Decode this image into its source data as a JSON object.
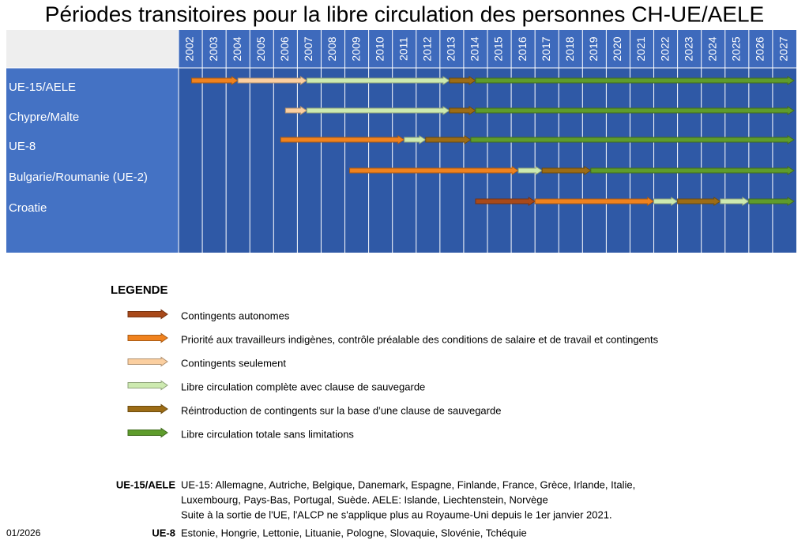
{
  "chart_data": {
    "type": "gantt",
    "title": "Périodes transitoires pour la libre circulation des personnes CH-UE/AELE",
    "xlim": [
      2002,
      2028
    ],
    "xticks": [
      2002,
      2003,
      2004,
      2005,
      2006,
      2007,
      2008,
      2009,
      2010,
      2011,
      2012,
      2013,
      2014,
      2015,
      2016,
      2017,
      2018,
      2019,
      2020,
      2021,
      2022,
      2023,
      2024,
      2025,
      2026,
      2027
    ],
    "legend_title": "LEGENDE",
    "legend": [
      {
        "name": "Contingents autonomes",
        "color": "#a8491a"
      },
      {
        "name": "Priorité aux travailleurs indigènes, contrôle préalable des conditions de salaire et de travail et contingents",
        "color": "#f0821e"
      },
      {
        "name": "Contingents seulement",
        "color": "#fbcfa0"
      },
      {
        "name": "Libre circulation complète avec clause de sauvegarde",
        "color": "#cdeab0"
      },
      {
        "name": "Réintroduction de contingents sur la base d’une clause de sauvegarde",
        "color": "#9c6c16"
      },
      {
        "name": "Libre circulation totale sans limitations",
        "color": "#5e9c2c"
      }
    ],
    "rows": [
      {
        "name": "UE-15/AELE",
        "segments": [
          {
            "kind": 1,
            "start": 2002.55,
            "end": 2004.5
          },
          {
            "kind": 2,
            "start": 2004.5,
            "end": 2007.4
          },
          {
            "kind": 3,
            "start": 2007.4,
            "end": 2013.4
          },
          {
            "kind": 4,
            "start": 2013.4,
            "end": 2014.5
          },
          {
            "kind": 5,
            "start": 2014.5,
            "end": 2027.9
          }
        ]
      },
      {
        "name": "Chypre/Malte",
        "segments": [
          {
            "kind": 2,
            "start": 2006.5,
            "end": 2007.4
          },
          {
            "kind": 3,
            "start": 2007.4,
            "end": 2013.4
          },
          {
            "kind": 4,
            "start": 2013.4,
            "end": 2014.5
          },
          {
            "kind": 5,
            "start": 2014.5,
            "end": 2027.9
          }
        ]
      },
      {
        "name": "UE-8",
        "segments": [
          {
            "kind": 1,
            "start": 2006.3,
            "end": 2011.5
          },
          {
            "kind": 3,
            "start": 2011.5,
            "end": 2012.4
          },
          {
            "kind": 4,
            "start": 2012.4,
            "end": 2014.3
          },
          {
            "kind": 5,
            "start": 2014.3,
            "end": 2027.9
          }
        ]
      },
      {
        "name": "Bulgarie/Roumanie (UE-2)",
        "segments": [
          {
            "kind": 1,
            "start": 2009.2,
            "end": 2016.3
          },
          {
            "kind": 3,
            "start": 2016.3,
            "end": 2017.3
          },
          {
            "kind": 4,
            "start": 2017.3,
            "end": 2019.35
          },
          {
            "kind": 5,
            "start": 2019.35,
            "end": 2027.9
          }
        ]
      },
      {
        "name": "Croatie",
        "segments": [
          {
            "kind": 0,
            "start": 2014.5,
            "end": 2017.0
          },
          {
            "kind": 1,
            "start": 2017.0,
            "end": 2022.0
          },
          {
            "kind": 3,
            "start": 2022.0,
            "end": 2023.0
          },
          {
            "kind": 4,
            "start": 2023.0,
            "end": 2024.8
          },
          {
            "kind": 3,
            "start": 2024.8,
            "end": 2026.0
          },
          {
            "kind": 5,
            "start": 2026.0,
            "end": 2027.9
          }
        ]
      }
    ],
    "notes": [
      {
        "label": "UE-15/AELE",
        "lines": [
          "UE-15: Allemagne, Autriche, Belgique, Danemark, Espagne, Finlande, France, Grèce, Irlande, Italie,",
          "Luxembourg, Pays-Bas, Portugal, Suède. AELE: Islande, Liechtenstein, Norvège",
          "Suite à la sortie de l'UE, l'ALCP ne s'applique plus au Royaume-Uni depuis le 1er janvier 2021."
        ]
      },
      {
        "label": "UE-8",
        "lines": [
          "Estonie, Hongrie, Lettonie, Lituanie, Pologne, Slovaquie, Slovénie, Tchéquie"
        ]
      }
    ],
    "date": "01/2026"
  }
}
